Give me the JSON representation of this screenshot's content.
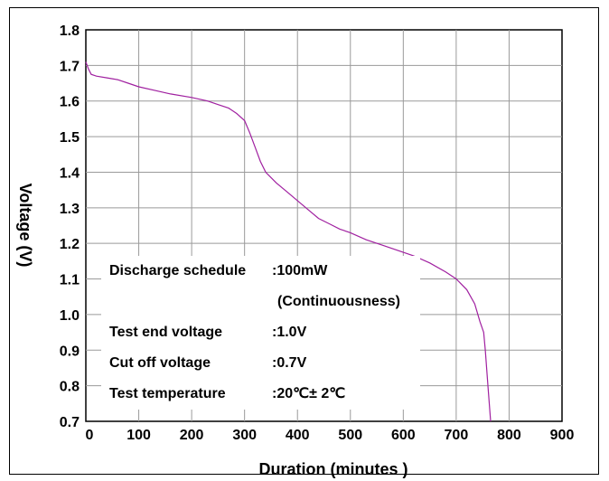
{
  "chart_data": {
    "type": "line",
    "xlabel": "Duration (minutes )",
    "ylabel": "Voltage (V)",
    "xlim": [
      0,
      900
    ],
    "ylim": [
      0.7,
      1.8
    ],
    "xticks": [
      "0",
      "100",
      "200",
      "300",
      "400",
      "500",
      "600",
      "700",
      "800",
      "900"
    ],
    "yticks": [
      "0.7",
      "0.8",
      "0.9",
      "1.0",
      "1.1",
      "1.2",
      "1.3",
      "1.4",
      "1.5",
      "1.6",
      "1.7",
      "1.8"
    ],
    "grid": true,
    "line_color": "#a020a0",
    "series": [
      {
        "x": [
          0,
          5,
          10,
          20,
          40,
          60,
          80,
          100,
          130,
          160,
          200,
          230,
          250,
          270,
          285,
          300,
          310,
          320,
          330,
          340,
          360,
          380,
          400,
          420,
          440,
          460,
          480,
          500,
          530,
          560,
          590,
          620,
          650,
          680,
          700,
          720,
          735,
          745,
          752,
          755,
          760,
          765
        ],
        "y": [
          1.71,
          1.69,
          1.675,
          1.67,
          1.665,
          1.66,
          1.65,
          1.64,
          1.63,
          1.62,
          1.61,
          1.6,
          1.59,
          1.58,
          1.565,
          1.545,
          1.51,
          1.47,
          1.43,
          1.4,
          1.37,
          1.345,
          1.32,
          1.295,
          1.27,
          1.255,
          1.24,
          1.23,
          1.21,
          1.195,
          1.18,
          1.165,
          1.145,
          1.12,
          1.1,
          1.07,
          1.03,
          0.98,
          0.95,
          0.9,
          0.8,
          0.7
        ]
      }
    ],
    "annotations": {
      "schedule_label": "Discharge schedule",
      "schedule_value": ":100mW",
      "schedule_note": "(Continuousness)",
      "end_voltage_label": "Test end voltage",
      "end_voltage_value": ":1.0V",
      "cutoff_label": "Cut off voltage",
      "cutoff_value": ":0.7V",
      "temp_label": "Test temperature",
      "temp_value": ":20℃± 2℃"
    }
  }
}
